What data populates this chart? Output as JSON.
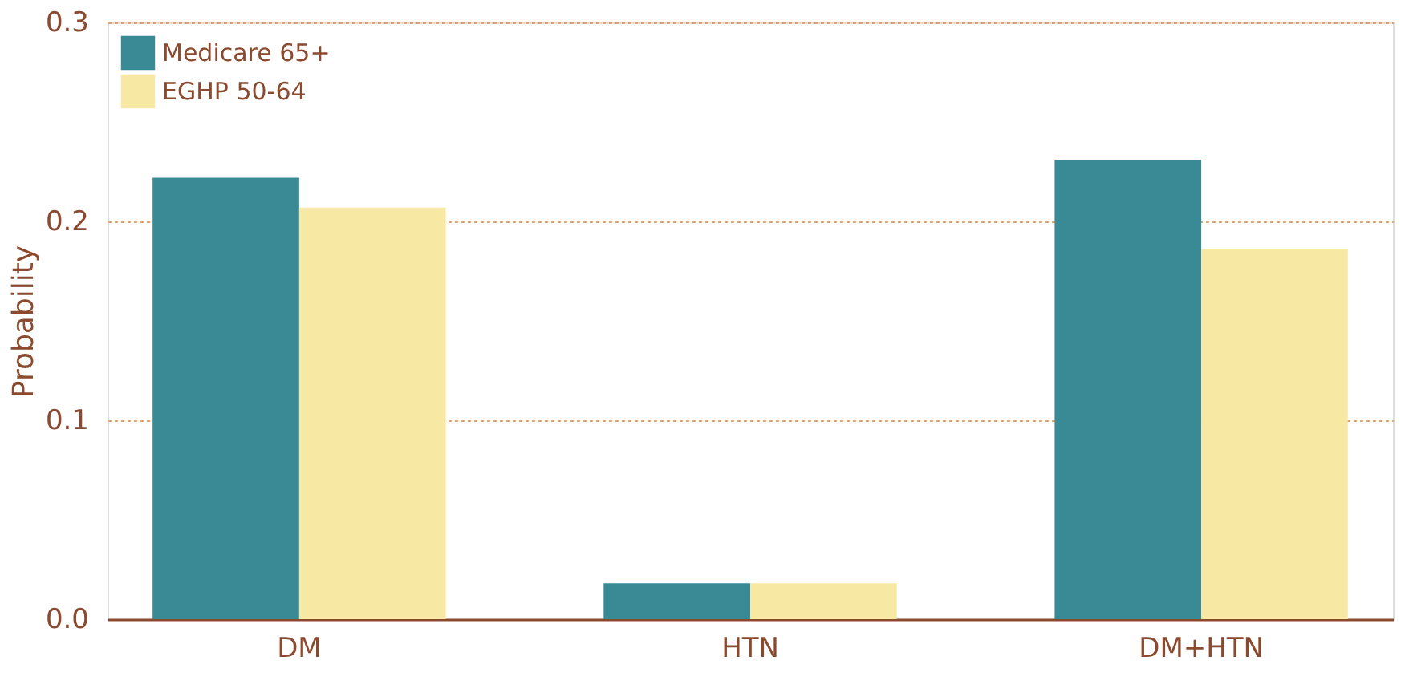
{
  "chart_data": {
    "type": "bar",
    "ylabel": "Probability",
    "categories": [
      "DM",
      "HTN",
      "DM+HTN"
    ],
    "series": [
      {
        "name": "Medicare 65+",
        "color": "#3a8a96",
        "values": [
          0.222,
          0.018,
          0.231
        ]
      },
      {
        "name": "EGHP 50-64",
        "color": "#f7e9a3",
        "values": [
          0.207,
          0.018,
          0.186
        ]
      }
    ],
    "ylim": [
      0,
      0.3
    ],
    "yticks": [
      {
        "value": 0,
        "label": "0.0"
      },
      {
        "value": 0.1,
        "label": "0.1"
      },
      {
        "value": 0.2,
        "label": "0.2"
      },
      {
        "value": 0.3,
        "label": "0.3"
      }
    ],
    "grid": "y",
    "legend": "top left"
  }
}
